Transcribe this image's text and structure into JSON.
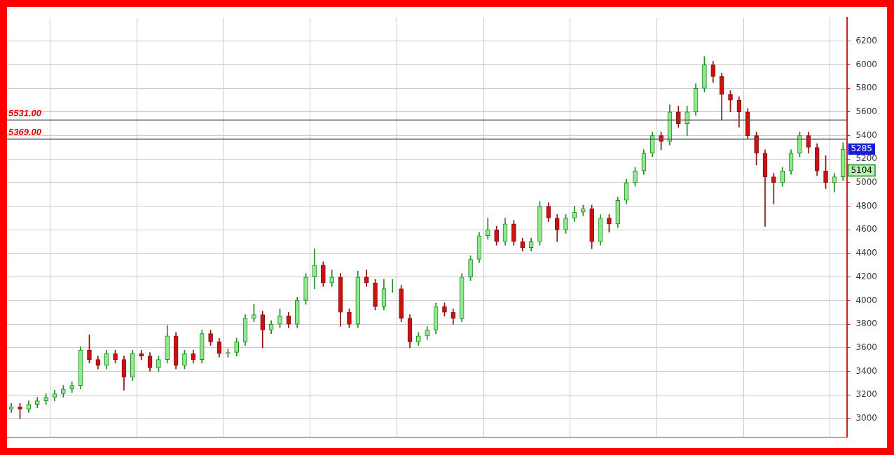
{
  "chart_data": {
    "type": "candlestick",
    "categories": [
      null,
      null,
      null,
      null,
      null,
      null,
      null,
      null,
      null,
      null,
      null,
      null,
      null,
      null,
      null,
      null,
      null,
      null,
      null,
      null,
      null,
      null,
      null,
      null,
      null,
      null,
      null,
      null,
      null,
      null,
      null,
      null,
      null,
      null,
      null,
      null,
      null,
      null,
      null,
      null,
      null,
      null,
      null,
      null,
      null,
      null,
      null,
      null,
      null,
      null,
      null,
      null,
      null,
      null,
      null,
      null,
      null,
      null,
      null,
      null,
      null,
      null,
      null,
      null,
      null,
      null,
      null,
      null,
      null,
      null,
      null,
      null,
      null,
      null,
      null,
      null,
      null,
      null,
      null,
      null,
      null,
      null,
      null,
      null,
      null,
      null,
      null,
      null,
      null,
      null,
      null,
      null,
      null,
      null,
      null,
      null,
      null
    ],
    "ohlc": [
      [
        3080,
        3130,
        3050,
        3100
      ],
      [
        3100,
        3130,
        3000,
        3080
      ],
      [
        3080,
        3150,
        3050,
        3120
      ],
      [
        3120,
        3180,
        3090,
        3150
      ],
      [
        3150,
        3210,
        3120,
        3180
      ],
      [
        3180,
        3240,
        3150,
        3210
      ],
      [
        3210,
        3280,
        3180,
        3250
      ],
      [
        3250,
        3310,
        3220,
        3280
      ],
      [
        3280,
        3610,
        3250,
        3580
      ],
      [
        3580,
        3710,
        3470,
        3500
      ],
      [
        3500,
        3530,
        3420,
        3450
      ],
      [
        3450,
        3580,
        3420,
        3550
      ],
      [
        3550,
        3580,
        3470,
        3500
      ],
      [
        3500,
        3530,
        3240,
        3350
      ],
      [
        3350,
        3580,
        3320,
        3550
      ],
      [
        3550,
        3580,
        3500,
        3530
      ],
      [
        3530,
        3560,
        3400,
        3430
      ],
      [
        3430,
        3530,
        3400,
        3500
      ],
      [
        3500,
        3790,
        3470,
        3700
      ],
      [
        3700,
        3730,
        3420,
        3450
      ],
      [
        3450,
        3580,
        3420,
        3550
      ],
      [
        3550,
        3580,
        3470,
        3500
      ],
      [
        3500,
        3750,
        3470,
        3720
      ],
      [
        3720,
        3750,
        3620,
        3650
      ],
      [
        3650,
        3680,
        3520,
        3550
      ],
      [
        3550,
        3590,
        3520,
        3560
      ],
      [
        3560,
        3680,
        3530,
        3650
      ],
      [
        3650,
        3880,
        3620,
        3850
      ],
      [
        3850,
        3970,
        3820,
        3880
      ],
      [
        3880,
        3910,
        3600,
        3750
      ],
      [
        3750,
        3830,
        3720,
        3800
      ],
      [
        3800,
        3930,
        3770,
        3870
      ],
      [
        3870,
        3900,
        3770,
        3800
      ],
      [
        3800,
        4030,
        3770,
        4000
      ],
      [
        4000,
        4230,
        3970,
        4200
      ],
      [
        4200,
        4440,
        4100,
        4300
      ],
      [
        4300,
        4330,
        4120,
        4150
      ],
      [
        4150,
        4260,
        4120,
        4200
      ],
      [
        4200,
        4230,
        3780,
        3900
      ],
      [
        3900,
        3930,
        3770,
        3800
      ],
      [
        3800,
        4250,
        3770,
        4200
      ],
      [
        4200,
        4260,
        4120,
        4150
      ],
      [
        4150,
        4180,
        3920,
        3950
      ],
      [
        3950,
        4180,
        3920,
        4100
      ],
      [
        4100,
        4180,
        4070,
        4100
      ],
      [
        4100,
        4130,
        3820,
        3850
      ],
      [
        3850,
        3880,
        3600,
        3650
      ],
      [
        3650,
        3730,
        3620,
        3700
      ],
      [
        3700,
        3780,
        3670,
        3750
      ],
      [
        3750,
        3980,
        3720,
        3950
      ],
      [
        3950,
        3980,
        3870,
        3900
      ],
      [
        3900,
        3930,
        3800,
        3850
      ],
      [
        3850,
        4230,
        3820,
        4200
      ],
      [
        4200,
        4380,
        4170,
        4350
      ],
      [
        4350,
        4580,
        4320,
        4550
      ],
      [
        4550,
        4700,
        4520,
        4600
      ],
      [
        4600,
        4630,
        4470,
        4500
      ],
      [
        4500,
        4700,
        4470,
        4650
      ],
      [
        4650,
        4680,
        4470,
        4500
      ],
      [
        4500,
        4530,
        4420,
        4450
      ],
      [
        4450,
        4530,
        4420,
        4500
      ],
      [
        4500,
        4840,
        4470,
        4800
      ],
      [
        4800,
        4830,
        4670,
        4700
      ],
      [
        4700,
        4730,
        4500,
        4600
      ],
      [
        4600,
        4730,
        4570,
        4700
      ],
      [
        4700,
        4800,
        4670,
        4750
      ],
      [
        4750,
        4810,
        4720,
        4780
      ],
      [
        4780,
        4810,
        4440,
        4500
      ],
      [
        4500,
        4730,
        4470,
        4700
      ],
      [
        4700,
        4730,
        4580,
        4650
      ],
      [
        4650,
        4880,
        4620,
        4850
      ],
      [
        4850,
        5030,
        4820,
        5000
      ],
      [
        5000,
        5130,
        4970,
        5100
      ],
      [
        5100,
        5280,
        5070,
        5250
      ],
      [
        5250,
        5430,
        5220,
        5400
      ],
      [
        5400,
        5430,
        5280,
        5350
      ],
      [
        5350,
        5660,
        5320,
        5600
      ],
      [
        5600,
        5650,
        5470,
        5500
      ],
      [
        5500,
        5650,
        5400,
        5600
      ],
      [
        5600,
        5840,
        5570,
        5800
      ],
      [
        5800,
        6070,
        5770,
        6000
      ],
      [
        6000,
        6030,
        5850,
        5900
      ],
      [
        5900,
        5930,
        5530,
        5750
      ],
      [
        5750,
        5780,
        5600,
        5700
      ],
      [
        5700,
        5730,
        5470,
        5600
      ],
      [
        5600,
        5630,
        5370,
        5400
      ],
      [
        5400,
        5430,
        5150,
        5250
      ],
      [
        5250,
        5280,
        4630,
        5050
      ],
      [
        5050,
        5080,
        4820,
        5000
      ],
      [
        5000,
        5130,
        4970,
        5100
      ],
      [
        5100,
        5280,
        5070,
        5250
      ],
      [
        5250,
        5430,
        5220,
        5400
      ],
      [
        5400,
        5430,
        5250,
        5300
      ],
      [
        5300,
        5330,
        5060,
        5100
      ],
      [
        5100,
        5230,
        4950,
        5000
      ],
      [
        5000,
        5080,
        4920,
        5050
      ],
      [
        5050,
        5340,
        5020,
        5285
      ]
    ],
    "ylim": [
      2840,
      6400
    ],
    "yticks": [
      3000,
      3200,
      3400,
      3600,
      3800,
      4000,
      4200,
      4400,
      4600,
      4800,
      5000,
      5200,
      5400,
      5600,
      5800,
      6000,
      6200
    ],
    "grid": true,
    "ref_lines": [
      {
        "axis": "y",
        "value": 5531,
        "label": "5531.00",
        "color": "#555555"
      },
      {
        "axis": "y",
        "value": 5369,
        "label": "5369.00",
        "color": "#555555"
      }
    ],
    "annotations": [
      {
        "text": "5285",
        "y": 5285
      },
      {
        "text": "5104",
        "y": 5104
      }
    ]
  }
}
